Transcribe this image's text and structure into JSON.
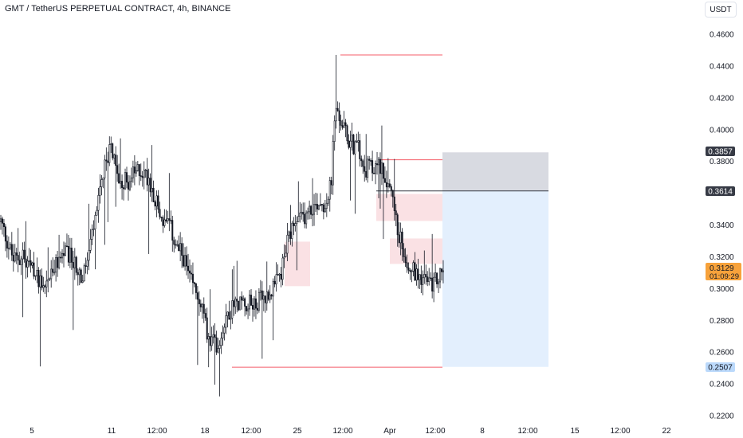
{
  "header": {
    "title": "GMT / TetherUS PERPETUAL CONTRACT, 4h, BINANCE",
    "currency_label": "USDT"
  },
  "price_badges": {
    "upper": "0.3857",
    "entry": "0.3614",
    "last_price": "0.3129",
    "countdown": "01:09:29",
    "lower": "0.2507"
  },
  "colors": {
    "candle": "#131722",
    "level_line": "#f23645",
    "zone_fill": "#f6c9cd",
    "stop_zone": "#d1d4dc",
    "target_zone": "#e3effd",
    "last_price_badge": "#f7a23b",
    "lower_badge": "#bbd9fb",
    "dark_badge": "#363a45"
  },
  "chart_data": {
    "type": "candlestick",
    "title": "GMT / TetherUS PERPETUAL CONTRACT, 4h, BINANCE",
    "interval": "4h",
    "y_unit": "USDT",
    "x_tick_labels": [
      "5",
      "11",
      "12:00",
      "18",
      "12:00",
      "25",
      "12:00",
      "Apr",
      "12:00",
      "8",
      "12:00",
      "15",
      "12:00",
      "22"
    ],
    "y_tick_labels": [
      "0.4600",
      "0.4400",
      "0.4200",
      "0.4000",
      "0.3800",
      "0.3600",
      "0.3400",
      "0.3200",
      "0.3000",
      "0.2800",
      "0.2600",
      "0.2400",
      "0.2200"
    ],
    "ylim": [
      0.214,
      0.474
    ],
    "num_candles": 210,
    "close_path": [
      [
        0,
        0.342
      ],
      [
        4,
        0.33
      ],
      [
        8,
        0.318
      ],
      [
        14,
        0.32
      ],
      [
        20,
        0.311
      ],
      [
        28,
        0.303
      ],
      [
        34,
        0.312
      ],
      [
        40,
        0.323
      ],
      [
        46,
        0.318
      ],
      [
        52,
        0.305
      ],
      [
        58,
        0.332
      ],
      [
        62,
        0.355
      ],
      [
        66,
        0.375
      ],
      [
        70,
        0.39
      ],
      [
        74,
        0.37
      ],
      [
        80,
        0.367
      ],
      [
        88,
        0.375
      ],
      [
        94,
        0.37
      ],
      [
        102,
        0.344
      ],
      [
        108,
        0.337
      ],
      [
        112,
        0.325
      ],
      [
        116,
        0.32
      ],
      [
        120,
        0.305
      ],
      [
        126,
        0.295
      ],
      [
        132,
        0.268
      ],
      [
        138,
        0.265
      ],
      [
        144,
        0.285
      ],
      [
        152,
        0.292
      ],
      [
        160,
        0.29
      ],
      [
        168,
        0.295
      ],
      [
        174,
        0.301
      ],
      [
        178,
        0.31
      ],
      [
        182,
        0.328
      ],
      [
        186,
        0.338
      ],
      [
        192,
        0.345
      ],
      [
        198,
        0.35
      ],
      [
        202,
        0.355
      ],
      [
        206,
        0.353
      ],
      [
        210,
        0.366
      ],
      [
        212,
        0.41
      ],
      [
        216,
        0.405
      ],
      [
        220,
        0.395
      ],
      [
        224,
        0.39
      ],
      [
        228,
        0.387
      ],
      [
        232,
        0.376
      ],
      [
        236,
        0.375
      ],
      [
        240,
        0.378
      ],
      [
        244,
        0.372
      ],
      [
        248,
        0.362
      ],
      [
        250,
        0.345
      ],
      [
        254,
        0.33
      ],
      [
        258,
        0.318
      ],
      [
        262,
        0.311
      ],
      [
        266,
        0.309
      ],
      [
        270,
        0.305
      ],
      [
        274,
        0.302
      ],
      [
        278,
        0.307
      ],
      [
        281,
        0.313
      ]
    ],
    "spike_high": 0.447,
    "horizontal_levels": [
      0.447,
      0.381,
      0.2505
    ],
    "demand_zones": [
      {
        "top": 0.3295,
        "bottom": 0.3015
      },
      {
        "top": 0.3595,
        "bottom": 0.3425
      },
      {
        "top": 0.3315,
        "bottom": 0.3155
      }
    ],
    "position": {
      "entry": 0.3614,
      "stop": 0.3857,
      "target": 0.2507
    },
    "last_price": 0.3129
  }
}
